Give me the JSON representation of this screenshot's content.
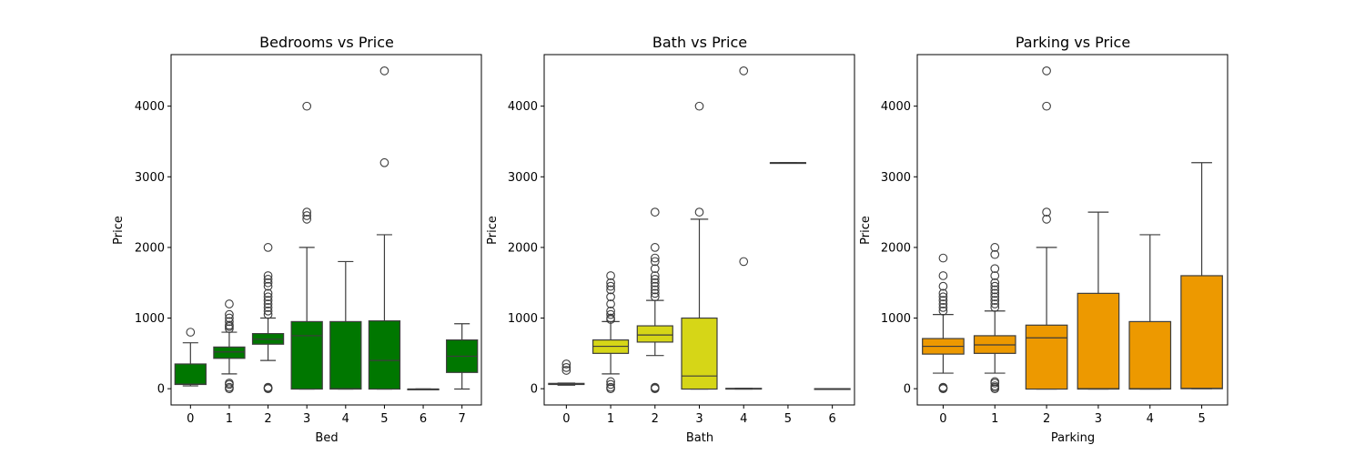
{
  "chart_data": [
    {
      "type": "box",
      "title": "Bedrooms vs Price",
      "xlabel": "Bed",
      "ylabel": "Price",
      "color": "#008000",
      "ylim": [
        -230,
        4730
      ],
      "yticks": [
        0,
        1000,
        2000,
        3000,
        4000
      ],
      "categories": [
        "0",
        "1",
        "2",
        "3",
        "4",
        "5",
        "6",
        "7"
      ],
      "boxes": [
        {
          "category": "0",
          "whisker_low": 40,
          "q1": 60,
          "median": 65,
          "q3": 350,
          "whisker_high": 650,
          "outliers": [
            800
          ]
        },
        {
          "category": "1",
          "whisker_low": 210,
          "q1": 430,
          "median": 520,
          "q3": 590,
          "whisker_high": 800,
          "outliers": [
            0,
            20,
            60,
            80,
            850,
            880,
            900,
            950,
            1000,
            1050,
            1200
          ]
        },
        {
          "category": "2",
          "whisker_low": 400,
          "q1": 630,
          "median": 700,
          "q3": 780,
          "whisker_high": 1000,
          "outliers": [
            0,
            10,
            20,
            1050,
            1100,
            1150,
            1200,
            1250,
            1300,
            1350,
            1450,
            1500,
            1550,
            1600,
            2000
          ]
        },
        {
          "category": "3",
          "whisker_low": -5,
          "q1": -5,
          "median": 750,
          "q3": 950,
          "whisker_high": 2000,
          "outliers": [
            2400,
            2450,
            2500,
            4000
          ]
        },
        {
          "category": "4",
          "whisker_low": -5,
          "q1": -5,
          "median": 0,
          "q3": 950,
          "whisker_high": 1800,
          "outliers": []
        },
        {
          "category": "5",
          "whisker_low": -5,
          "q1": -5,
          "median": 400,
          "q3": 960,
          "whisker_high": 2180,
          "outliers": [
            3200,
            4500
          ]
        },
        {
          "category": "6",
          "whisker_low": -5,
          "q1": -5,
          "median": -5,
          "q3": -5,
          "whisker_high": -5,
          "outliers": []
        },
        {
          "category": "7",
          "whisker_low": -5,
          "q1": 230,
          "median": 460,
          "q3": 690,
          "whisker_high": 920,
          "outliers": []
        }
      ]
    },
    {
      "type": "box",
      "title": "Bath vs Price",
      "xlabel": "Bath",
      "ylabel": "Price",
      "color": "#e6e619",
      "ylim": [
        -230,
        4730
      ],
      "yticks": [
        0,
        1000,
        2000,
        3000,
        4000
      ],
      "categories": [
        "0",
        "1",
        "2",
        "3",
        "4",
        "5",
        "6"
      ],
      "boxes": [
        {
          "category": "0",
          "whisker_low": 50,
          "q1": 60,
          "median": 65,
          "q3": 75,
          "whisker_high": 80,
          "outliers": [
            260,
            300,
            350
          ]
        },
        {
          "category": "1",
          "whisker_low": 210,
          "q1": 500,
          "median": 600,
          "q3": 690,
          "whisker_high": 950,
          "outliers": [
            0,
            20,
            60,
            100,
            980,
            1000,
            1050,
            1100,
            1200,
            1300,
            1400,
            1450,
            1500,
            1600
          ]
        },
        {
          "category": "2",
          "whisker_low": 470,
          "q1": 660,
          "median": 760,
          "q3": 890,
          "whisker_high": 1250,
          "outliers": [
            0,
            10,
            20,
            1300,
            1350,
            1400,
            1450,
            1500,
            1550,
            1600,
            1700,
            1800,
            1850,
            2000,
            2500
          ]
        },
        {
          "category": "3",
          "whisker_low": -5,
          "q1": -5,
          "median": 180,
          "q3": 1000,
          "whisker_high": 2400,
          "outliers": [
            2500,
            4000
          ]
        },
        {
          "category": "4",
          "whisker_low": -5,
          "q1": -5,
          "median": 0,
          "q3": 5,
          "whisker_high": 5,
          "outliers": [
            1800,
            4500
          ]
        },
        {
          "category": "5",
          "whisker_low": 3200,
          "q1": 3200,
          "median": 3200,
          "q3": 3200,
          "whisker_high": 3200,
          "outliers": []
        },
        {
          "category": "6",
          "whisker_low": 0,
          "q1": 0,
          "median": 0,
          "q3": 0,
          "whisker_high": 0,
          "outliers": []
        }
      ]
    },
    {
      "type": "box",
      "title": "Parking vs Price",
      "xlabel": "Parking",
      "ylabel": "Price",
      "color": "#ffa500",
      "ylim": [
        -230,
        4730
      ],
      "yticks": [
        0,
        1000,
        2000,
        3000,
        4000
      ],
      "categories": [
        "0",
        "1",
        "2",
        "3",
        "4",
        "5"
      ],
      "boxes": [
        {
          "category": "0",
          "whisker_low": 220,
          "q1": 490,
          "median": 600,
          "q3": 710,
          "whisker_high": 1050,
          "outliers": [
            0,
            10,
            20,
            1100,
            1150,
            1200,
            1250,
            1300,
            1350,
            1450,
            1600,
            1850
          ]
        },
        {
          "category": "1",
          "whisker_low": 220,
          "q1": 500,
          "median": 620,
          "q3": 750,
          "whisker_high": 1100,
          "outliers": [
            0,
            20,
            40,
            80,
            100,
            1150,
            1200,
            1250,
            1300,
            1350,
            1400,
            1450,
            1500,
            1600,
            1700,
            1900,
            2000
          ]
        },
        {
          "category": "2",
          "whisker_low": -5,
          "q1": -5,
          "median": 720,
          "q3": 900,
          "whisker_high": 2000,
          "outliers": [
            2400,
            2500,
            4000,
            4500
          ]
        },
        {
          "category": "3",
          "whisker_low": -5,
          "q1": -5,
          "median": 0,
          "q3": 1350,
          "whisker_high": 2500,
          "outliers": []
        },
        {
          "category": "4",
          "whisker_low": -5,
          "q1": -5,
          "median": 0,
          "q3": 950,
          "whisker_high": 2180,
          "outliers": []
        },
        {
          "category": "5",
          "whisker_low": 0,
          "q1": 0,
          "median": 5,
          "q3": 1600,
          "whisker_high": 3200,
          "outliers": []
        }
      ]
    }
  ]
}
